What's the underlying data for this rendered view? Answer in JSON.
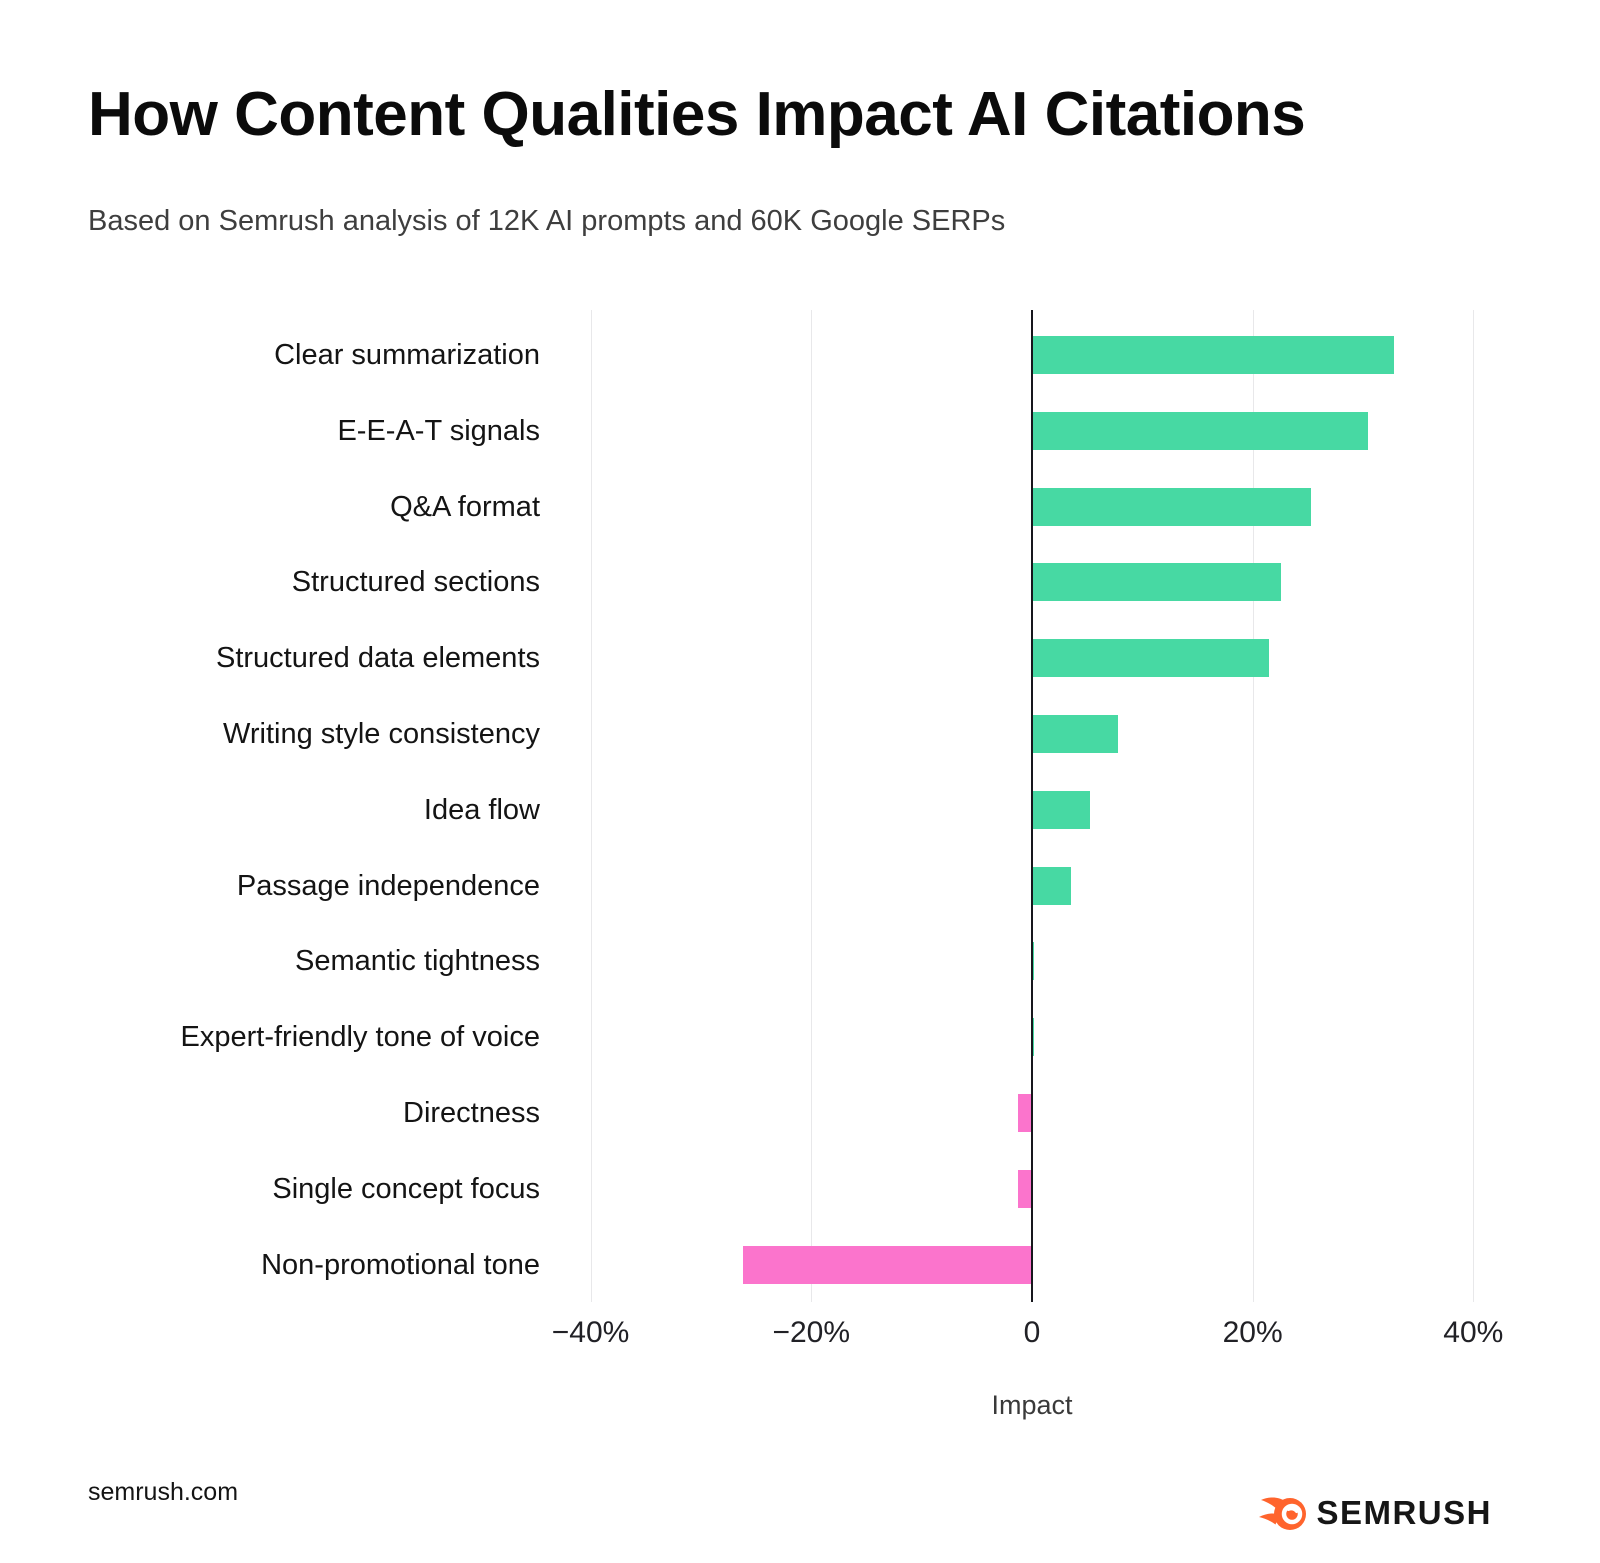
{
  "title": "How Content Qualities Impact AI Citations",
  "subtitle": "Based on Semrush analysis of 12K AI prompts and 60K Google SERPs",
  "chart_data": {
    "type": "bar",
    "orientation": "horizontal",
    "title": "How Content Qualities Impact AI Citations",
    "subtitle": "Based on Semrush analysis of 12K AI prompts and 60K Google SERPs",
    "categories": [
      "Clear summarization",
      "E-E-A-T signals",
      "Q&A format",
      "Structured sections",
      "Structured data elements",
      "Writing style consistency",
      "Idea flow",
      "Passage independence",
      "Semantic tightness",
      "Expert-friendly tone of voice",
      "Directness",
      "Single concept focus",
      "Non-promotional tone"
    ],
    "values": [
      32.8,
      30.5,
      25.3,
      22.6,
      21.5,
      7.8,
      5.3,
      3.5,
      0.2,
      0.2,
      -1.3,
      -1.3,
      -26.2
    ],
    "unit": "%",
    "xlabel": "Impact",
    "ylabel": "",
    "xlim": [
      -42.5,
      42.6
    ],
    "x_ticks": [
      {
        "value": -40,
        "label": "−40%"
      },
      {
        "value": -20,
        "label": "−20%"
      },
      {
        "value": 0,
        "label": "0"
      },
      {
        "value": 20,
        "label": "20%"
      },
      {
        "value": 40,
        "label": "40%"
      }
    ],
    "grid": true,
    "legend_position": "none",
    "colors": {
      "positive": "#47D9A3",
      "negative": "#FB74CC",
      "axis": "#17171d",
      "gridline": "#e8e8ea"
    }
  },
  "footer": {
    "source": "semrush.com",
    "brand": "SEMRUSH",
    "brand_color": "#FF642D"
  }
}
